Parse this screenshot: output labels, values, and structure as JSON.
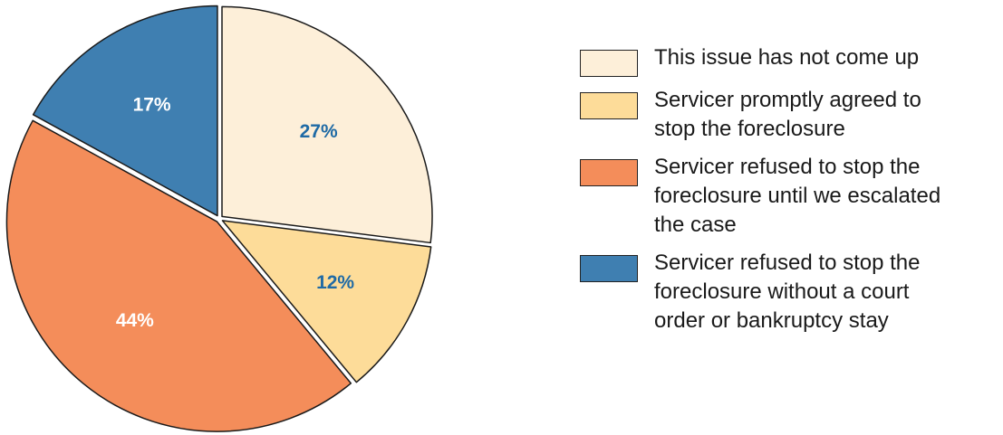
{
  "chart_data": {
    "type": "pie",
    "title": "",
    "categories": [
      "This issue has not come up",
      "Servicer promptly agreed to stop the foreclosure",
      "Servicer refused to stop the foreclosure until we escalated the case",
      "Servicer refused to stop the foreclosure without a court order or bankruptcy stay"
    ],
    "values": [
      27,
      12,
      44,
      17
    ],
    "value_labels": [
      "27%",
      "12%",
      "44%",
      "17%"
    ],
    "colors": [
      "#fdefd9",
      "#fddc99",
      "#f48d5a",
      "#3f7fb1"
    ],
    "label_colors": [
      "#1f6aa5",
      "#1f6aa5",
      "#ffffff",
      "#ffffff"
    ],
    "legend_position": "right"
  },
  "legend": [
    {
      "lines": [
        "This issue has not come up"
      ]
    },
    {
      "lines": [
        "Servicer promptly agreed to",
        "stop the foreclosure"
      ]
    },
    {
      "lines": [
        "Servicer refused to stop the",
        "foreclosure until we escalated",
        "the case"
      ]
    },
    {
      "lines": [
        "Servicer refused to stop the",
        "foreclosure without a court",
        "order or bankruptcy stay"
      ]
    }
  ]
}
